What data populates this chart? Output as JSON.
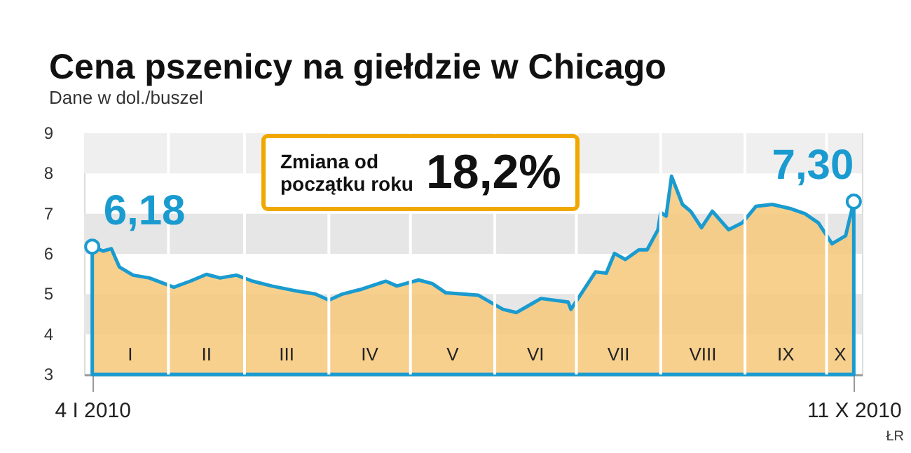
{
  "chart_data": {
    "type": "area",
    "title": "Cena pszenicy na giełdzie w Chicago",
    "subtitle": "Dane w dol./buszel",
    "x": [
      "2010-01-04",
      "2010-01-08",
      "2010-01-11",
      "2010-01-14",
      "2010-01-19",
      "2010-01-25",
      "2010-02-03",
      "2010-02-09",
      "2010-02-15",
      "2010-02-20",
      "2010-02-26",
      "2010-03-04",
      "2010-03-11",
      "2010-03-19",
      "2010-03-27",
      "2010-04-01",
      "2010-04-06",
      "2010-04-13",
      "2010-04-22",
      "2010-04-26",
      "2010-05-04",
      "2010-05-09",
      "2010-05-14",
      "2010-05-26",
      "2010-06-04",
      "2010-06-09",
      "2010-06-18",
      "2010-06-28",
      "2010-06-29",
      "2010-07-03",
      "2010-07-08",
      "2010-07-12",
      "2010-07-15",
      "2010-07-19",
      "2010-07-24",
      "2010-07-27",
      "2010-07-31",
      "2010-08-01",
      "2010-08-03",
      "2010-08-05",
      "2010-08-09",
      "2010-08-12",
      "2010-08-16",
      "2010-08-20",
      "2010-08-26",
      "2010-08-31",
      "2010-09-05",
      "2010-09-11",
      "2010-09-18",
      "2010-09-23",
      "2010-09-28",
      "2010-10-03",
      "2010-10-08",
      "2010-10-11"
    ],
    "series": [
      {
        "color": "#f6c87a",
        "values": [
          6.18,
          6.07,
          6.13,
          5.67,
          5.47,
          5.4,
          5.17,
          5.32,
          5.49,
          5.4,
          5.47,
          5.32,
          5.2,
          5.09,
          5.0,
          4.85,
          5.0,
          5.12,
          5.32,
          5.2,
          5.35,
          5.26,
          5.03,
          4.97,
          4.62,
          4.54,
          4.89,
          4.8,
          4.62,
          5.03,
          5.55,
          5.52,
          6.01,
          5.86,
          6.1,
          6.1,
          6.6,
          7.03,
          6.94,
          7.93,
          7.23,
          7.06,
          6.65,
          7.06,
          6.6,
          6.77,
          7.18,
          7.23,
          7.12,
          7.0,
          6.77,
          6.25,
          6.45,
          7.3
        ],
        "value_labels": [
          "6,18",
          null,
          null,
          null,
          null,
          null,
          null,
          null,
          null,
          null,
          null,
          null,
          null,
          null,
          null,
          null,
          null,
          null,
          null,
          null,
          null,
          null,
          null,
          null,
          null,
          null,
          null,
          null,
          null,
          null,
          null,
          null,
          null,
          null,
          null,
          null,
          null,
          null,
          null,
          null,
          null,
          null,
          null,
          null,
          null,
          null,
          null,
          null,
          null,
          null,
          null,
          null,
          null,
          "7,30"
        ]
      }
    ],
    "xlim": [
      "2010-01-01",
      "2010-10-14"
    ],
    "xticks": [
      {
        "value": "2010-01-04",
        "label": "4 I 2010"
      },
      {
        "value": "2010-10-11",
        "label": "11 X 2010"
      }
    ],
    "ylim": [
      3,
      9
    ],
    "yticks": [
      3,
      4,
      5,
      6,
      7,
      8,
      9
    ],
    "bands": [
      {
        "axis": "y",
        "from": 4,
        "to": 5,
        "label": null,
        "color": "#e6e6e6"
      },
      {
        "axis": "y",
        "from": 6,
        "to": 7,
        "label": null,
        "color": "#e6e6e6"
      },
      {
        "axis": "y",
        "from": 8,
        "to": 9,
        "label": null,
        "color": "#efefef"
      }
    ],
    "ref_lines": [
      {
        "axis": "x",
        "value": "2010-02-01",
        "label": null,
        "color": "#ffffff"
      },
      {
        "axis": "x",
        "value": "2010-03-01",
        "label": null,
        "color": "#ffffff"
      },
      {
        "axis": "x",
        "value": "2010-04-01",
        "label": null,
        "color": "#ffffff"
      },
      {
        "axis": "x",
        "value": "2010-05-01",
        "label": null,
        "color": "#ffffff"
      },
      {
        "axis": "x",
        "value": "2010-06-01",
        "label": null,
        "color": "#ffffff"
      },
      {
        "axis": "x",
        "value": "2010-07-01",
        "label": null,
        "color": "#ffffff"
      },
      {
        "axis": "x",
        "value": "2010-08-01",
        "label": null,
        "color": "#ffffff"
      },
      {
        "axis": "x",
        "value": "2010-09-01",
        "label": null,
        "color": "#ffffff"
      },
      {
        "axis": "x",
        "value": "2010-10-01",
        "label": null,
        "color": "#ffffff"
      }
    ],
    "annotations": [
      "Zmiana od\npoczątku roku",
      "18,2%",
      "ŁR",
      "I",
      "II",
      "III",
      "IV",
      "V",
      "VI",
      "VII",
      "VIII",
      "IX",
      "X"
    ]
  }
}
